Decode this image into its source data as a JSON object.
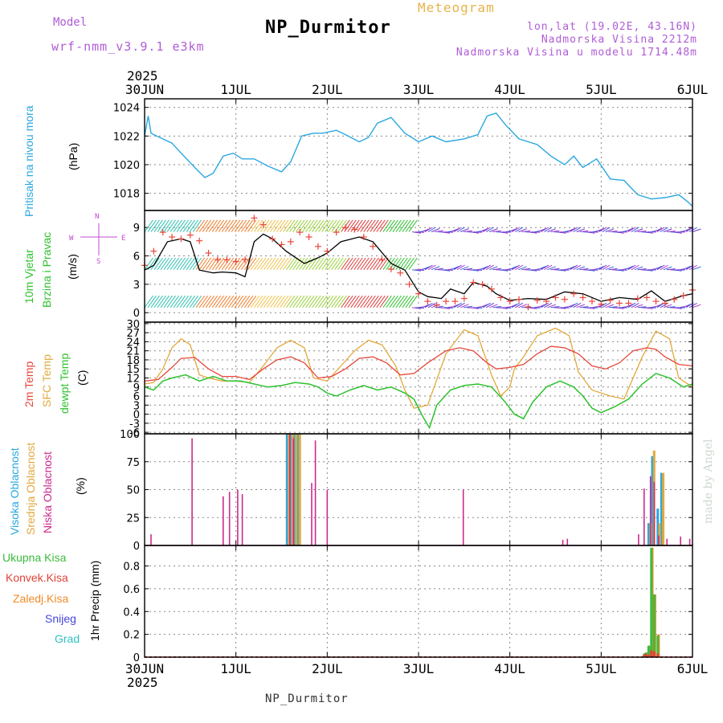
{
  "header": {
    "model_label": "Model",
    "model_name": "wrf-nmm_v3.9.1  e3km",
    "title": "NP_Durmitor",
    "meteogram_label": "Meteogram",
    "coords": "lon,lat (19.02E, 43.16N)",
    "elevation": "Nadmorska Visina 2212m",
    "model_elevation": "Nadmorska Visina u modelu 1714.48m"
  },
  "footer": {
    "station": "NP_Durmitor"
  },
  "credit": "made by Angel",
  "colors": {
    "pressure": "#2aa7e0",
    "wind_sym": "#cc44cc",
    "temp2m": "#e8463a",
    "sfc": "#e2a93c",
    "dewpt": "#2ec12e",
    "total_precip": "#3dbb3d",
    "conv_precip": "#e0403a",
    "frozen_precip": "#f08a28",
    "snow": "#4444dd",
    "grad": "#2ec2c2",
    "high_cloud": "#2aa7e0",
    "mid_cloud": "#e2a93c",
    "low_cloud": "#cc2a8c"
  },
  "chart_data": {
    "type": "meteogram",
    "time_axis": {
      "year": "2025",
      "ticks": [
        "30JUN",
        "1JUL",
        "2JUL",
        "3JUL",
        "4JUL",
        "5JUL",
        "6JUL"
      ],
      "range_days": [
        0,
        6
      ]
    },
    "panels": [
      {
        "id": "pressure",
        "type": "line",
        "labels": [
          "Pritisak na nivou mora"
        ],
        "unit": "(hPa)",
        "ylim": [
          1016.8,
          1024.6
        ],
        "yticks": [
          1018,
          1020,
          1022,
          1024
        ],
        "series": [
          {
            "name": "Pritisak na nivou mora",
            "x": [
              0.0,
              0.04,
              0.07,
              0.1,
              0.2,
              0.3,
              0.4,
              0.55,
              0.66,
              0.75,
              0.86,
              0.97,
              1.07,
              1.2,
              1.35,
              1.5,
              1.6,
              1.72,
              1.85,
              1.95,
              2.1,
              2.2,
              2.35,
              2.45,
              2.55,
              2.7,
              2.85,
              3.0,
              3.15,
              3.3,
              3.5,
              3.65,
              3.75,
              3.85,
              3.95,
              4.1,
              4.3,
              4.45,
              4.6,
              4.7,
              4.8,
              4.95,
              5.1,
              5.25,
              5.4,
              5.55,
              5.7,
              5.85,
              5.95,
              6.0
            ],
            "y": [
              1022.0,
              1023.4,
              1022.2,
              1022.1,
              1021.8,
              1021.5,
              1020.8,
              1019.8,
              1019.1,
              1019.4,
              1020.6,
              1020.8,
              1020.4,
              1020.4,
              1019.9,
              1019.5,
              1020.2,
              1022.0,
              1022.2,
              1022.2,
              1022.4,
              1022.1,
              1021.6,
              1021.9,
              1022.9,
              1023.3,
              1022.2,
              1021.6,
              1022.0,
              1021.6,
              1021.8,
              1022.1,
              1023.4,
              1023.6,
              1022.8,
              1021.8,
              1021.4,
              1020.6,
              1020.0,
              1020.6,
              1019.8,
              1020.4,
              1019.0,
              1018.9,
              1017.9,
              1017.6,
              1017.7,
              1017.9,
              1017.4,
              1017.1
            ]
          }
        ]
      },
      {
        "id": "wind",
        "type": "line+barbs",
        "labels": [
          "10m Vjetar",
          "Brzina i Pravac"
        ],
        "unit": "(m/s)",
        "direction_legend": [
          "N",
          "W",
          "E",
          "S"
        ],
        "ylim": [
          -1.0,
          10.8
        ],
        "yticks": [
          0,
          3,
          6,
          9
        ],
        "barb_rows_ms": [
          0.8,
          4.8,
          8.8
        ],
        "series": [
          {
            "name": "Brzina (black)",
            "x": [
              0.0,
              0.1,
              0.25,
              0.4,
              0.5,
              0.6,
              0.75,
              0.85,
              1.0,
              1.1,
              1.2,
              1.3,
              1.4,
              1.55,
              1.75,
              1.9,
              2.0,
              2.15,
              2.35,
              2.5,
              2.7,
              2.85,
              3.0,
              3.1,
              3.25,
              3.35,
              3.5,
              3.6,
              3.75,
              3.85,
              4.0,
              4.2,
              4.4,
              4.6,
              4.8,
              5.0,
              5.2,
              5.4,
              5.55,
              5.7,
              5.9,
              6.0
            ],
            "y": [
              4.5,
              5.0,
              7.5,
              7.8,
              7.5,
              4.5,
              4.2,
              4.3,
              4.2,
              3.8,
              7.5,
              8.3,
              7.8,
              6.5,
              5.2,
              5.8,
              6.3,
              7.5,
              8.0,
              7.5,
              5.2,
              4.5,
              2.2,
              1.7,
              1.5,
              2.5,
              2.0,
              3.2,
              2.8,
              2.0,
              1.3,
              1.5,
              1.4,
              2.2,
              2.0,
              1.2,
              1.6,
              1.4,
              2.3,
              1.2,
              1.8,
              2.0
            ]
          },
          {
            "name": "Udari (red +)",
            "x": [
              0.0,
              0.1,
              0.2,
              0.3,
              0.4,
              0.5,
              0.6,
              0.7,
              0.8,
              0.9,
              1.0,
              1.1,
              1.2,
              1.3,
              1.4,
              1.5,
              1.6,
              1.7,
              1.8,
              1.9,
              2.0,
              2.1,
              2.2,
              2.3,
              2.4,
              2.5,
              2.6,
              2.7,
              2.8,
              2.9,
              3.0,
              3.1,
              3.2,
              3.3,
              3.4,
              3.5,
              3.6,
              3.7,
              3.8,
              3.9,
              4.0,
              4.1,
              4.2,
              4.3,
              4.4,
              4.5,
              4.6,
              4.7,
              4.8,
              4.9,
              5.0,
              5.1,
              5.2,
              5.3,
              5.4,
              5.5,
              5.6,
              5.7,
              5.8,
              5.9,
              6.0
            ],
            "y": [
              5.0,
              6.5,
              8.5,
              8.0,
              7.8,
              8.2,
              7.6,
              6.3,
              5.6,
              5.6,
              5.4,
              5.6,
              10.0,
              9.3,
              7.8,
              7.2,
              7.5,
              8.5,
              8.0,
              7.0,
              6.5,
              8.5,
              9.0,
              8.8,
              8.0,
              7.0,
              5.6,
              4.6,
              4.2,
              3.0,
              2.0,
              1.2,
              0.8,
              1.2,
              1.2,
              1.5,
              3.2,
              3.0,
              2.5,
              1.6,
              1.2,
              1.4,
              0.6,
              1.3,
              1.2,
              1.6,
              1.4,
              2.0,
              1.6,
              1.2,
              0.9,
              1.3,
              1.0,
              1.0,
              1.5,
              1.6,
              1.2,
              1.0,
              1.4,
              1.8,
              2.4
            ]
          }
        ]
      },
      {
        "id": "temperature",
        "type": "line",
        "labels": [
          "2m Temp",
          "SFC Temp",
          "dewpt Temp"
        ],
        "unit": "(C)",
        "ylim": [
          -6.5,
          30.5
        ],
        "yticks": [
          -6,
          -3,
          0,
          3,
          6,
          9,
          12,
          15,
          18,
          21,
          24,
          27,
          30
        ],
        "series": [
          {
            "name": "2m Temp",
            "x": [
              0.0,
              0.15,
              0.3,
              0.4,
              0.55,
              0.7,
              0.85,
              1.0,
              1.15,
              1.3,
              1.45,
              1.6,
              1.75,
              1.9,
              2.05,
              2.2,
              2.35,
              2.5,
              2.65,
              2.8,
              2.95,
              3.1,
              3.3,
              3.45,
              3.6,
              3.75,
              3.85,
              4.0,
              4.15,
              4.3,
              4.45,
              4.6,
              4.75,
              4.9,
              5.05,
              5.2,
              5.35,
              5.5,
              5.6,
              5.7,
              5.85,
              6.0
            ],
            "y": [
              11.0,
              11.5,
              15.5,
              18.5,
              18.8,
              15.0,
              12.5,
              12.5,
              11.5,
              15.0,
              18.0,
              19.0,
              17.0,
              12.0,
              12.5,
              15.0,
              18.5,
              19.0,
              17.0,
              13.0,
              13.5,
              17.0,
              21.0,
              22.0,
              21.0,
              17.0,
              15.0,
              15.5,
              16.5,
              20.0,
              22.5,
              22.0,
              20.0,
              16.0,
              15.0,
              17.0,
              21.0,
              22.0,
              21.5,
              19.0,
              16.5,
              16.0
            ]
          },
          {
            "name": "SFC Temp",
            "x": [
              0.0,
              0.1,
              0.2,
              0.3,
              0.4,
              0.5,
              0.6,
              0.7,
              0.85,
              1.0,
              1.15,
              1.3,
              1.45,
              1.6,
              1.75,
              1.85,
              2.0,
              2.15,
              2.3,
              2.45,
              2.6,
              2.75,
              2.85,
              2.95,
              3.1,
              3.3,
              3.5,
              3.65,
              3.8,
              3.9,
              4.0,
              4.05,
              4.15,
              4.3,
              4.5,
              4.65,
              4.75,
              4.9,
              5.1,
              5.25,
              5.45,
              5.6,
              5.75,
              5.85,
              6.0
            ],
            "y": [
              10.0,
              10.5,
              15.0,
              22.0,
              25.0,
              23.0,
              13.0,
              12.0,
              11.0,
              11.0,
              10.5,
              16.0,
              22.0,
              24.5,
              22.0,
              12.0,
              11.0,
              16.0,
              21.0,
              24.5,
              23.0,
              16.0,
              8.0,
              2.0,
              3.0,
              20.0,
              28.0,
              26.0,
              13.0,
              6.0,
              9.0,
              15.0,
              19.0,
              26.0,
              28.5,
              26.0,
              14.0,
              8.0,
              6.0,
              5.0,
              19.0,
              27.5,
              25.0,
              12.0,
              9.0
            ]
          },
          {
            "name": "dewpt Temp",
            "x": [
              0.0,
              0.1,
              0.2,
              0.3,
              0.45,
              0.6,
              0.75,
              0.9,
              1.05,
              1.2,
              1.35,
              1.5,
              1.65,
              1.8,
              1.9,
              2.0,
              2.1,
              2.25,
              2.4,
              2.55,
              2.7,
              2.85,
              2.95,
              3.05,
              3.12,
              3.2,
              3.35,
              3.5,
              3.65,
              3.8,
              3.95,
              4.05,
              4.15,
              4.25,
              4.4,
              4.55,
              4.7,
              4.8,
              4.9,
              5.0,
              5.15,
              5.3,
              5.45,
              5.6,
              5.75,
              5.9,
              6.0
            ],
            "y": [
              9.0,
              8.0,
              11.0,
              12.0,
              13.0,
              11.0,
              12.5,
              11.0,
              11.0,
              10.0,
              9.0,
              9.5,
              10.5,
              10.0,
              9.0,
              7.0,
              6.0,
              8.0,
              9.5,
              8.0,
              9.0,
              7.0,
              5.0,
              -1.0,
              -4.5,
              3.0,
              8.0,
              9.5,
              10.0,
              9.0,
              4.0,
              0.0,
              -1.5,
              4.0,
              9.0,
              11.0,
              9.0,
              6.0,
              2.0,
              0.5,
              2.5,
              5.0,
              10.0,
              13.5,
              12.0,
              9.0,
              10.0
            ]
          }
        ]
      },
      {
        "id": "cloud",
        "type": "bar",
        "labels": [
          "Visoka Oblacnost",
          "Srednja Oblacnost",
          "Niska Oblacnost"
        ],
        "unit": "(%)",
        "ylim": [
          0,
          100
        ],
        "yticks": [
          0,
          25,
          50,
          75,
          100
        ],
        "series": [
          {
            "name": "Visoka Oblacnost",
            "x": [
              1.56,
              1.6,
              1.64,
              1.68,
              5.52,
              5.56,
              5.62,
              5.66
            ],
            "values": [
              100,
              100,
              100,
              100,
              20,
              80,
              33,
              65
            ]
          },
          {
            "name": "Srednja Oblacnost",
            "x": [
              1.58,
              1.62,
              1.66,
              1.7,
              5.54,
              5.58,
              5.64,
              5.68
            ],
            "values": [
              100,
              100,
              100,
              100,
              20,
              85,
              20,
              65
            ]
          },
          {
            "name": "Niska Oblacnost",
            "x": [
              0.07,
              0.52,
              0.86,
              0.93,
              1.02,
              1.07,
              1.59,
              1.63,
              1.83,
              1.87,
              2.0,
              3.49,
              4.58,
              4.63,
              5.41,
              5.47,
              5.54,
              5.58,
              5.63,
              5.72,
              5.87,
              5.97
            ],
            "values": [
              10,
              96,
              44,
              48,
              50,
              46,
              100,
              96,
              56,
              94,
              50,
              50,
              5,
              6,
              10,
              51,
              62,
              57,
              9,
              6,
              8,
              6
            ]
          }
        ]
      },
      {
        "id": "precip",
        "type": "bar",
        "labels": [
          "Ukupna Kisa",
          "Konvek.Kisa",
          "Zaledj.Kisa",
          "Snijeg",
          "Grad"
        ],
        "unit": "1hr Precip (mm)",
        "ylim": [
          0,
          0.98
        ],
        "yticks": [
          0,
          0.2,
          0.4,
          0.6,
          0.8
        ],
        "series": [
          {
            "name": "Ukupna Kisa",
            "x": [
              5.47,
              5.49,
              5.52,
              5.55,
              5.58,
              5.62
            ],
            "values": [
              0.03,
              0.04,
              0.1,
              0.96,
              0.55,
              0.19
            ]
          },
          {
            "name": "Konvek.Kisa",
            "x": [
              5.47,
              5.49,
              5.52,
              5.55,
              5.58,
              5.62
            ],
            "values": [
              0.02,
              0.03,
              0.02,
              0.06,
              0.05,
              0.03
            ]
          },
          {
            "name": "Zaledj.Kisa",
            "x": [
              5.48,
              5.5,
              5.53,
              5.56,
              5.59,
              5.63
            ],
            "values": [
              0.03,
              0.04,
              0.1,
              0.96,
              0.55,
              0.2
            ]
          },
          {
            "name": "Snijeg",
            "x": [],
            "values": []
          },
          {
            "name": "Grad",
            "x": [],
            "values": []
          }
        ]
      }
    ]
  }
}
